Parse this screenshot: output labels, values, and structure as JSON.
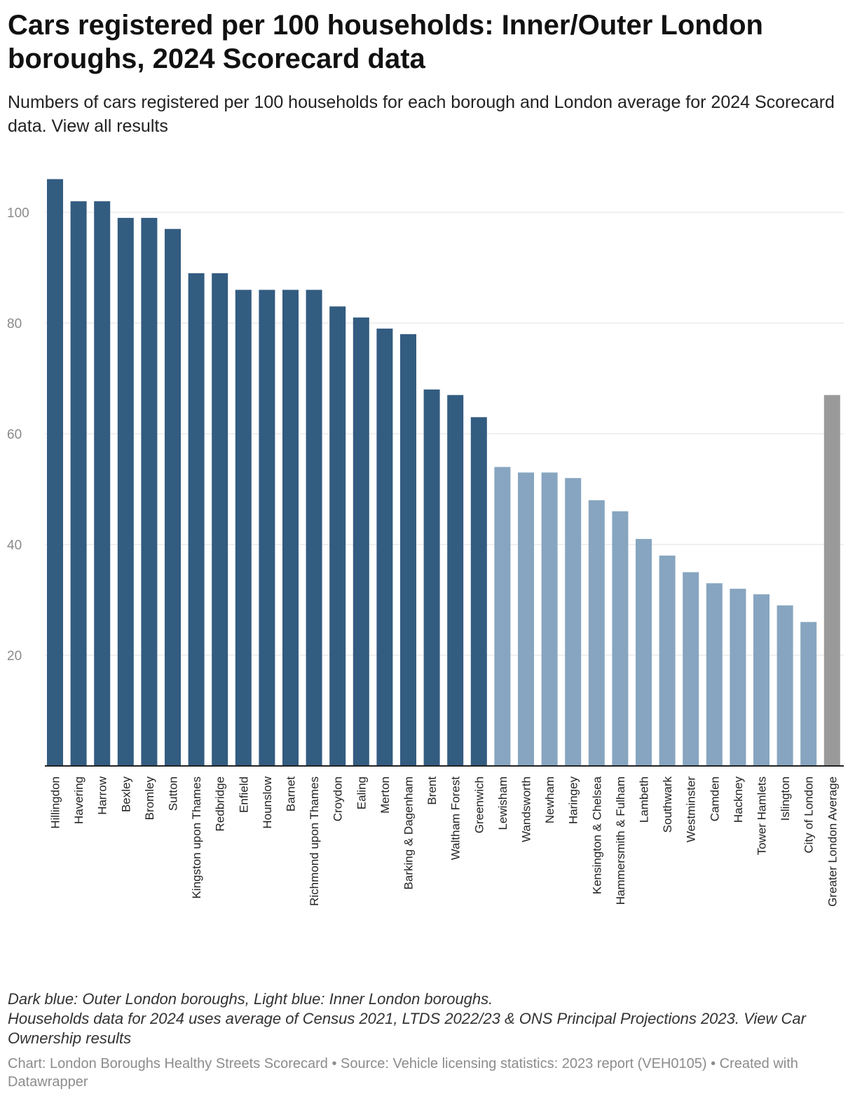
{
  "header": {
    "title": "Cars registered per 100 households: Inner/Outer London boroughs, 2024 Scorecard data",
    "subtitle": "Numbers of cars registered per 100 households for each borough and London average for 2024 Scorecard data. View all results"
  },
  "notes": {
    "line1": "Dark blue: Outer London boroughs, Light blue: Inner London boroughs.",
    "line2": "Households data for 2024 uses average of Census 2021, LTDS 2022/23 & ONS Principal Projections 2023. View Car Ownership results"
  },
  "footer": {
    "text": "Chart: London Boroughs Healthy Streets Scorecard • Source: Vehicle licensing statistics: 2023 report (VEH0105) • Created with Datawrapper"
  },
  "colors": {
    "outer": "#335c81",
    "inner": "#87a5c0",
    "average": "#9a9a9a",
    "grid": "#e2e2e2",
    "axis": "#222222"
  },
  "chart_data": {
    "type": "bar",
    "title": "Cars registered per 100 households: Inner/Outer London boroughs, 2024 Scorecard data",
    "xlabel": "",
    "ylabel": "",
    "ylim": [
      0,
      106
    ],
    "yticks": [
      20,
      40,
      60,
      80,
      100
    ],
    "grid": true,
    "legend": "none",
    "categories": [
      "Hillingdon",
      "Havering",
      "Harrow",
      "Bexley",
      "Bromley",
      "Sutton",
      "Kingston upon Thames",
      "Redbridge",
      "Enfield",
      "Hounslow",
      "Barnet",
      "Richmond upon Thames",
      "Croydon",
      "Ealing",
      "Merton",
      "Barking & Dagenham",
      "Brent",
      "Waltham Forest",
      "Greenwich",
      "Lewisham",
      "Wandsworth",
      "Newham",
      "Haringey",
      "Kensington & Chelsea",
      "Hammersmith & Fulham",
      "Lambeth",
      "Southwark",
      "Westminster",
      "Camden",
      "Hackney",
      "Tower Hamlets",
      "Islington",
      "City of London",
      "Greater London Average"
    ],
    "values": [
      106,
      102,
      102,
      99,
      99,
      97,
      89,
      89,
      86,
      86,
      86,
      86,
      83,
      81,
      79,
      78,
      68,
      67,
      63,
      54,
      53,
      53,
      52,
      48,
      46,
      41,
      38,
      35,
      33,
      32,
      31,
      29,
      26,
      67
    ],
    "groups": [
      "outer",
      "outer",
      "outer",
      "outer",
      "outer",
      "outer",
      "outer",
      "outer",
      "outer",
      "outer",
      "outer",
      "outer",
      "outer",
      "outer",
      "outer",
      "outer",
      "outer",
      "outer",
      "outer",
      "inner",
      "inner",
      "inner",
      "inner",
      "inner",
      "inner",
      "inner",
      "inner",
      "inner",
      "inner",
      "inner",
      "inner",
      "inner",
      "inner",
      "average"
    ]
  }
}
